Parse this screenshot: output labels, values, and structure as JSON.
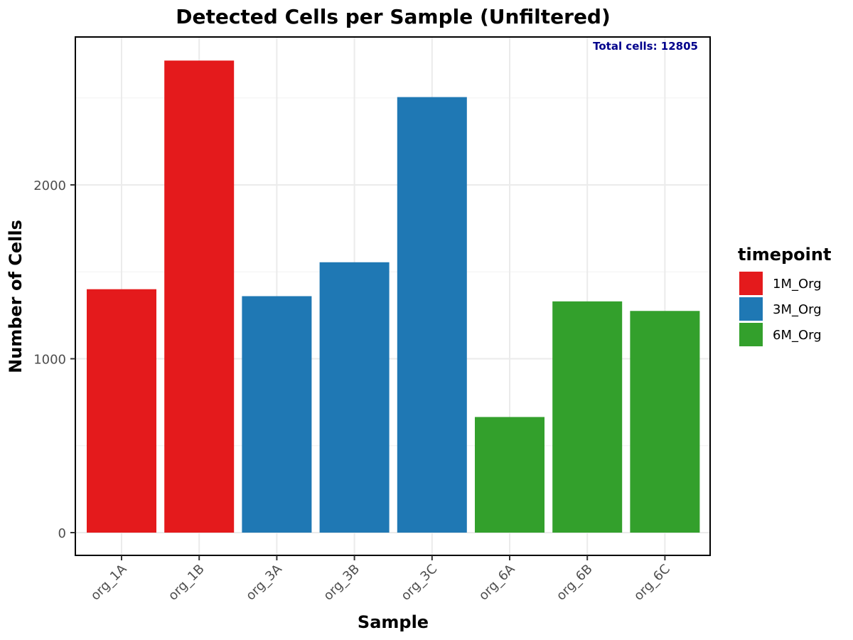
{
  "chart_data": {
    "type": "bar",
    "title": "Detected Cells per Sample (Unfiltered)",
    "xlabel": "Sample",
    "ylabel": "Number of Cells",
    "categories": [
      "org_1A",
      "org_1B",
      "org_3A",
      "org_3B",
      "org_3C",
      "org_6A",
      "org_6B",
      "org_6C"
    ],
    "values": [
      1400,
      2715,
      1360,
      1555,
      2505,
      665,
      1330,
      1275
    ],
    "groups": [
      "1M_Org",
      "1M_Org",
      "3M_Org",
      "3M_Org",
      "3M_Org",
      "6M_Org",
      "6M_Org",
      "6M_Org"
    ],
    "ylim": [
      0,
      2800
    ],
    "yticks": [
      0,
      1000,
      2000
    ],
    "grid": true,
    "annotation": "Total cells: 12805",
    "annotation_color": "#00008B",
    "legend": {
      "title": "timepoint",
      "position": "right",
      "entries": [
        {
          "label": "1M_Org",
          "color": "#E41A1C"
        },
        {
          "label": "3M_Org",
          "color": "#1F78B4"
        },
        {
          "label": "6M_Org",
          "color": "#33A02C"
        }
      ]
    }
  }
}
